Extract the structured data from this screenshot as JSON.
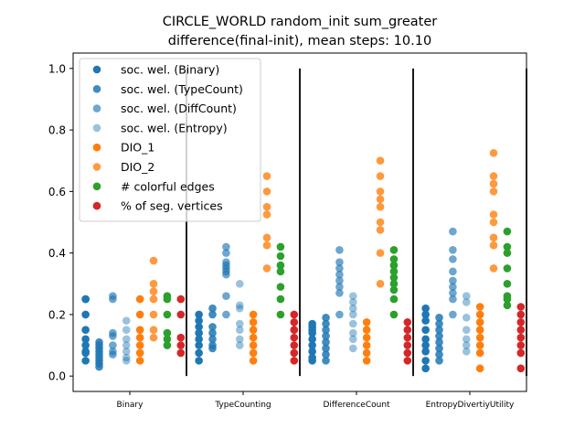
{
  "chart_data": {
    "type": "scatter",
    "title": "CIRCLE_WORLD random_init sum_greater",
    "subtitle": "difference(final-init), mean steps: 10.10",
    "xlabel": "",
    "ylabel": "",
    "ylim": [
      -0.05,
      1.05
    ],
    "yticks": [
      "0.0",
      "0.2",
      "0.4",
      "0.6",
      "0.8",
      "1.0"
    ],
    "categories": [
      "Binary",
      "TypeCounting",
      "DifferenceCount",
      "EntropyDivertiyUtility"
    ],
    "legend_position": "top-left",
    "grid": false,
    "series": [
      {
        "name": "soc. wel. (Binary)",
        "color": "#1f77b4",
        "opacity": 1.0,
        "offset": -0.39,
        "values": [
          [
            0.25,
            0.25,
            0.2,
            0.15,
            0.12,
            0.1,
            0.08,
            0.075,
            0.05
          ],
          [
            0.2,
            0.18,
            0.16,
            0.14,
            0.12,
            0.1,
            0.075,
            0.05
          ],
          [
            0.17,
            0.16,
            0.15,
            0.14,
            0.12,
            0.1,
            0.08,
            0.06,
            0.05
          ],
          [
            0.22,
            0.2,
            0.18,
            0.15,
            0.12,
            0.1,
            0.08,
            0.05,
            0.025
          ]
        ]
      },
      {
        "name": "soc. wel. (TypeCount)",
        "color": "#1f77b4",
        "opacity": 0.85,
        "offset": -0.27,
        "values": [
          [
            0.11,
            0.1,
            0.09,
            0.08,
            0.07,
            0.06,
            0.05,
            0.04,
            0.03
          ],
          [
            0.22,
            0.2,
            0.16,
            0.14,
            0.12,
            0.1,
            0.09
          ],
          [
            0.19,
            0.17,
            0.15,
            0.13,
            0.11,
            0.09,
            0.07,
            0.05
          ],
          [
            0.19,
            0.17,
            0.15,
            0.13,
            0.11,
            0.09,
            0.07,
            0.05
          ]
        ]
      },
      {
        "name": "soc. wel. (DiffCount)",
        "color": "#1f77b4",
        "opacity": 0.65,
        "offset": -0.15,
        "values": [
          [
            0.26,
            0.25,
            0.14,
            0.13,
            0.1,
            0.08,
            0.07
          ],
          [
            0.42,
            0.4,
            0.37,
            0.36,
            0.35,
            0.34,
            0.33,
            0.26,
            0.2
          ],
          [
            0.41,
            0.37,
            0.35,
            0.33,
            0.31,
            0.29,
            0.27,
            0.2
          ],
          [
            0.47,
            0.41,
            0.38,
            0.34,
            0.31,
            0.29,
            0.27,
            0.25,
            0.2
          ]
        ]
      },
      {
        "name": "soc. wel. (Entropy)",
        "color": "#1f77b4",
        "opacity": 0.45,
        "offset": -0.03,
        "values": [
          [
            0.18,
            0.15,
            0.12,
            0.1,
            0.08,
            0.06,
            0.05
          ],
          [
            0.3,
            0.23,
            0.22,
            0.17,
            0.15,
            0.12,
            0.1
          ],
          [
            0.26,
            0.24,
            0.22,
            0.2,
            0.17,
            0.14,
            0.12,
            0.09
          ],
          [
            0.26,
            0.24,
            0.19,
            0.15,
            0.12,
            0.1,
            0.08
          ]
        ]
      },
      {
        "name": "DIO_1",
        "color": "#ff7f0e",
        "opacity": 1.0,
        "offset": 0.09,
        "values": [
          [
            0.25,
            0.2,
            0.15,
            0.125,
            0.1,
            0.075,
            0.05
          ],
          [
            0.2,
            0.175,
            0.15,
            0.125,
            0.1,
            0.075,
            0.05
          ],
          [
            0.175,
            0.15,
            0.125,
            0.1,
            0.075,
            0.05
          ],
          [
            0.225,
            0.2,
            0.175,
            0.15,
            0.125,
            0.1,
            0.075,
            0.025
          ]
        ]
      },
      {
        "name": "DIO_2",
        "color": "#ff7f0e",
        "opacity": 0.8,
        "offset": 0.21,
        "values": [
          [
            0.375,
            0.3,
            0.275,
            0.25,
            0.2,
            0.15,
            0.125
          ],
          [
            0.65,
            0.6,
            0.55,
            0.525,
            0.45,
            0.425,
            0.35
          ],
          [
            0.7,
            0.65,
            0.6,
            0.575,
            0.55,
            0.5,
            0.475,
            0.4,
            0.3
          ],
          [
            0.725,
            0.65,
            0.625,
            0.6,
            0.525,
            0.5,
            0.45,
            0.425,
            0.35
          ]
        ]
      },
      {
        "name": "# colorful edges",
        "color": "#2ca02c",
        "opacity": 1.0,
        "offset": 0.33,
        "values": [
          [
            0.26,
            0.25,
            0.2,
            0.14,
            0.12,
            0.1
          ],
          [
            0.42,
            0.39,
            0.36,
            0.34,
            0.29,
            0.25,
            0.2
          ],
          [
            0.41,
            0.38,
            0.36,
            0.34,
            0.32,
            0.3,
            0.28,
            0.25,
            0.2
          ],
          [
            0.47,
            0.42,
            0.4,
            0.35,
            0.3,
            0.26,
            0.25,
            0.23
          ]
        ]
      },
      {
        "name": "% of seg. vertices",
        "color": "#d62728",
        "opacity": 1.0,
        "offset": 0.45,
        "values": [
          [
            0.25,
            0.2,
            0.125,
            0.1,
            0.075
          ],
          [
            0.2,
            0.175,
            0.15,
            0.125,
            0.1,
            0.075,
            0.05
          ],
          [
            0.175,
            0.15,
            0.125,
            0.1,
            0.075,
            0.05
          ],
          [
            0.225,
            0.2,
            0.175,
            0.15,
            0.125,
            0.1,
            0.075,
            0.025
          ]
        ]
      }
    ]
  }
}
